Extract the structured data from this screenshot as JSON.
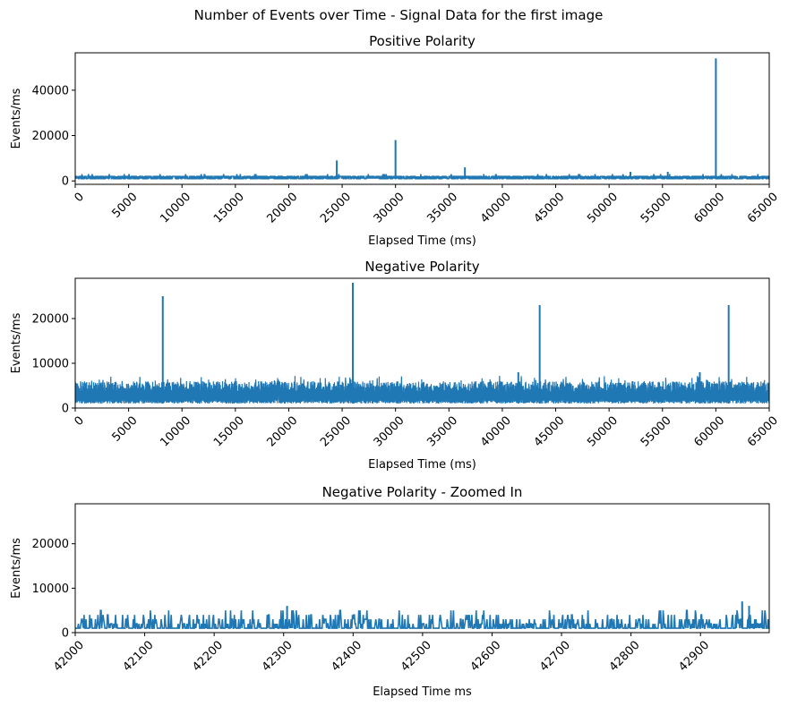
{
  "suptitle": "Number of Events over Time - Signal Data for the first image",
  "chart_data": [
    {
      "type": "line",
      "title": "Positive Polarity",
      "xlabel": "Elapsed Time (ms)",
      "ylabel": "Events/ms",
      "xlim": [
        0,
        65000
      ],
      "ylim": [
        -1500,
        56500
      ],
      "x_ticks": [
        0,
        5000,
        10000,
        15000,
        20000,
        25000,
        30000,
        35000,
        40000,
        45000,
        50000,
        55000,
        60000,
        65000
      ],
      "x_tick_labels": [
        "0",
        "5000",
        "10000",
        "15000",
        "20000",
        "25000",
        "30000",
        "35000",
        "40000",
        "45000",
        "50000",
        "55000",
        "60000",
        "65000"
      ],
      "y_ticks": [
        0,
        20000,
        40000
      ],
      "y_tick_labels": [
        "0",
        "20000",
        "40000"
      ],
      "line_color": "#1f77b4",
      "baseline": [
        1000,
        2000
      ],
      "spikes": [
        {
          "x": 24500,
          "y": 9000
        },
        {
          "x": 30000,
          "y": 18000
        },
        {
          "x": 36500,
          "y": 6000
        },
        {
          "x": 52000,
          "y": 4000
        },
        {
          "x": 55500,
          "y": 4000
        },
        {
          "x": 60000,
          "y": 54000
        }
      ],
      "grid": false
    },
    {
      "type": "line",
      "title": "Negative Polarity",
      "xlabel": "Elapsed Time (ms)",
      "ylabel": "Events/ms",
      "xlim": [
        0,
        65000
      ],
      "ylim": [
        0,
        29000
      ],
      "x_ticks": [
        0,
        5000,
        10000,
        15000,
        20000,
        25000,
        30000,
        35000,
        40000,
        45000,
        50000,
        55000,
        60000,
        65000
      ],
      "x_tick_labels": [
        "0",
        "5000",
        "10000",
        "15000",
        "20000",
        "25000",
        "30000",
        "35000",
        "40000",
        "45000",
        "50000",
        "55000",
        "60000",
        "65000"
      ],
      "y_ticks": [
        0,
        10000,
        20000
      ],
      "y_tick_labels": [
        "0",
        "10000",
        "20000"
      ],
      "line_color": "#1f77b4",
      "baseline": [
        1000,
        6000
      ],
      "spikes": [
        {
          "x": 8200,
          "y": 25000
        },
        {
          "x": 26000,
          "y": 28000
        },
        {
          "x": 41500,
          "y": 8000
        },
        {
          "x": 43500,
          "y": 23000
        },
        {
          "x": 58500,
          "y": 8000
        },
        {
          "x": 61200,
          "y": 23000
        }
      ],
      "grid": false
    },
    {
      "type": "line",
      "title": "Negative Polarity - Zoomed In",
      "xlabel": "Elapsed Time ms",
      "ylabel": "Events/ms",
      "xlim": [
        42000,
        42999
      ],
      "ylim": [
        0,
        29000
      ],
      "x_ticks": [
        42000,
        42100,
        42200,
        42300,
        42400,
        42500,
        42600,
        42700,
        42800,
        42900
      ],
      "x_tick_labels": [
        "42000",
        "42100",
        "42200",
        "42300",
        "42400",
        "42500",
        "42600",
        "42700",
        "42800",
        "42900"
      ],
      "y_ticks": [
        0,
        10000,
        20000
      ],
      "y_tick_labels": [
        "0",
        "10000",
        "20000"
      ],
      "line_color": "#1f77b4",
      "baseline": [
        1000,
        4000
      ],
      "spikes": [
        {
          "x": 42305,
          "y": 6000
        },
        {
          "x": 42960,
          "y": 7000
        },
        {
          "x": 42970,
          "y": 6000
        }
      ],
      "grid": false
    }
  ]
}
